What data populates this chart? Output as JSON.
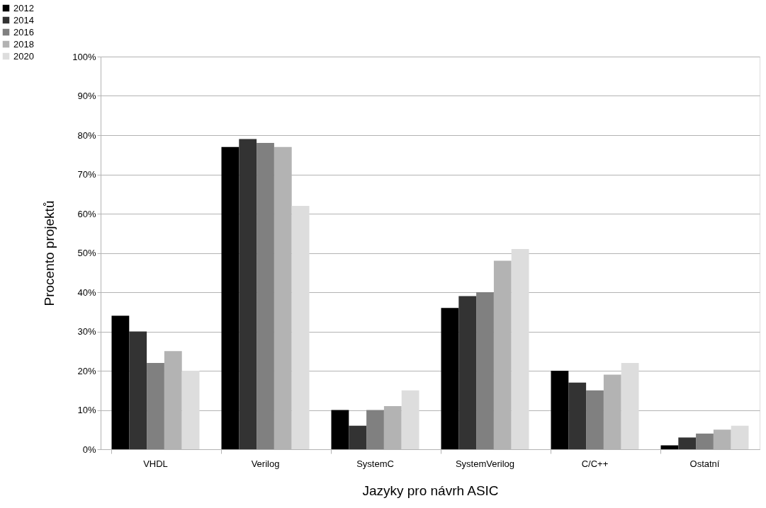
{
  "chart_data": {
    "type": "bar",
    "xlabel": "Jazyky pro návrh ASIC",
    "ylabel": "Procento projektů",
    "categories": [
      "VHDL",
      "Verilog",
      "SystemC",
      "SystemVerilog",
      "C/C++",
      "Ostatní"
    ],
    "series": [
      {
        "name": "2012",
        "color": "#000000",
        "values": [
          34,
          77,
          10,
          36,
          20,
          1
        ]
      },
      {
        "name": "2014",
        "color": "#333333",
        "values": [
          30,
          79,
          6,
          39,
          17,
          3
        ]
      },
      {
        "name": "2016",
        "color": "#808080",
        "values": [
          22,
          78,
          10,
          40,
          15,
          4
        ]
      },
      {
        "name": "2018",
        "color": "#b3b3b3",
        "values": [
          25,
          77,
          11,
          48,
          19,
          5
        ]
      },
      {
        "name": "2020",
        "color": "#dddddd",
        "values": [
          20,
          62,
          15,
          51,
          22,
          6
        ]
      }
    ],
    "ylim": [
      0,
      100
    ],
    "yticks": [
      {
        "value": 0,
        "label": "0%"
      },
      {
        "value": 10,
        "label": "10%"
      },
      {
        "value": 20,
        "label": "20%"
      },
      {
        "value": 30,
        "label": "30%"
      },
      {
        "value": 40,
        "label": "40%"
      },
      {
        "value": 50,
        "label": "50%"
      },
      {
        "value": 60,
        "label": "60%"
      },
      {
        "value": 70,
        "label": "70%"
      },
      {
        "value": 80,
        "label": "80%"
      },
      {
        "value": 90,
        "label": "90%"
      },
      {
        "value": 100,
        "label": "100%"
      }
    ],
    "grid": "y",
    "legend": "top left"
  }
}
